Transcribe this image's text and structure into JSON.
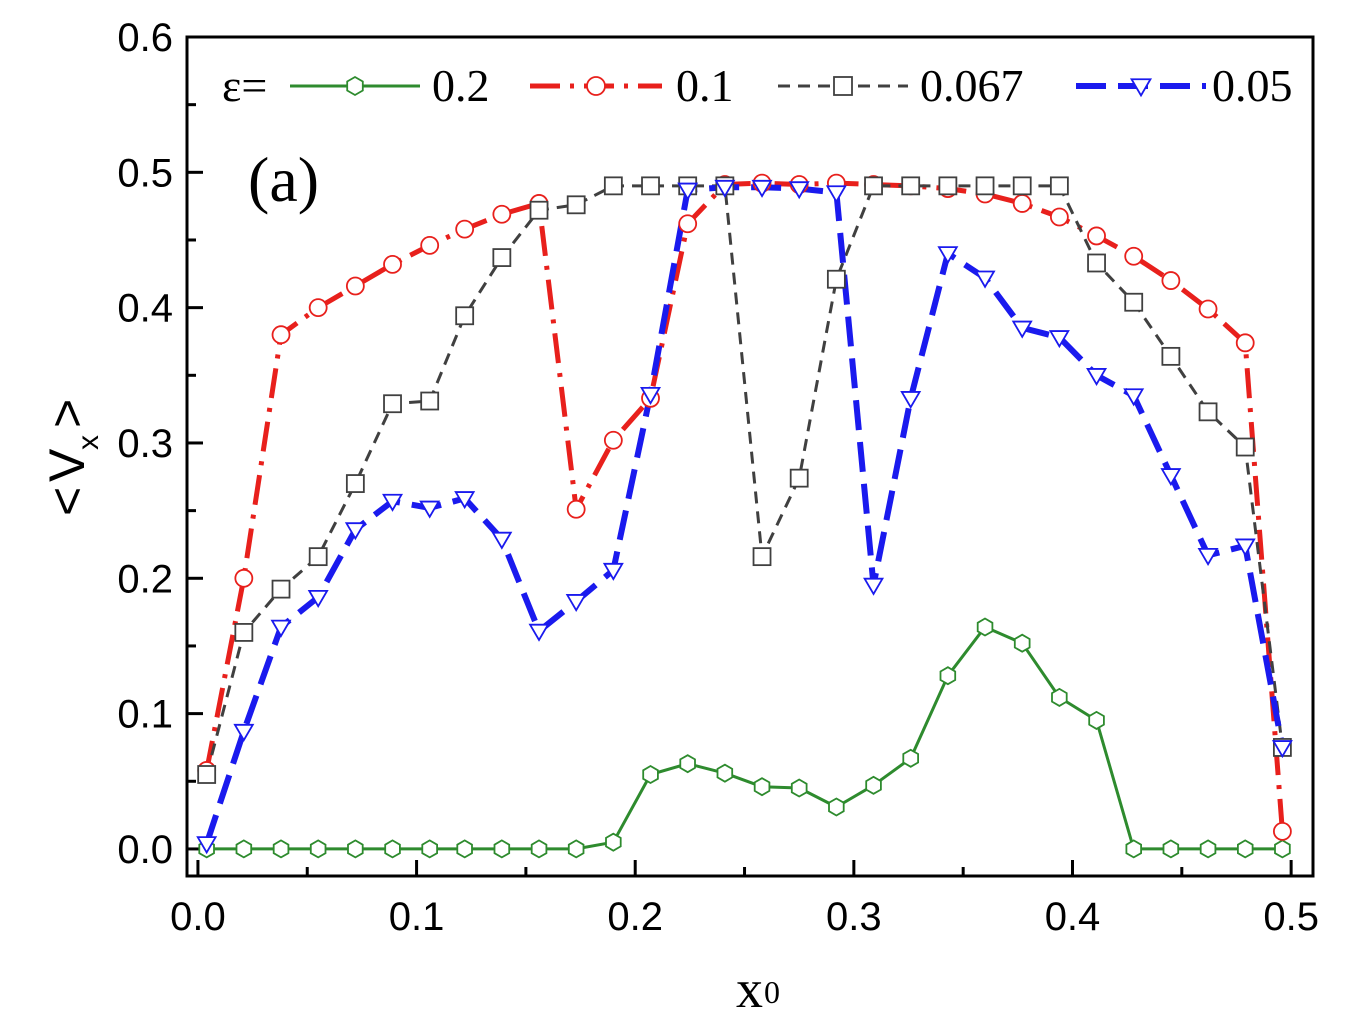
{
  "chart_data": {
    "type": "line",
    "panel_label": "(a)",
    "xlabel_main": "x",
    "xlabel_sub": "0",
    "ylabel_left": "<",
    "ylabel_main": "V",
    "ylabel_sub": "x",
    "ylabel_right": ">",
    "xlim": [
      -0.005,
      0.51
    ],
    "ylim": [
      -0.02,
      0.6
    ],
    "xticks": [
      0.0,
      0.1,
      0.2,
      0.3,
      0.4,
      0.5
    ],
    "xtick_labels": [
      "0.0",
      "0.1",
      "0.2",
      "0.3",
      "0.4",
      "0.5"
    ],
    "yticks": [
      0.0,
      0.1,
      0.2,
      0.3,
      0.4,
      0.5,
      0.6
    ],
    "ytick_labels": [
      "0.0",
      "0.1",
      "0.2",
      "0.3",
      "0.4",
      "0.5",
      "0.6"
    ],
    "legend_title": "ε=",
    "series": [
      {
        "name": "0.2",
        "color": "#2e8b2e",
        "dash": "solid",
        "marker": "hexagon",
        "x": [
          0.004,
          0.021,
          0.038,
          0.055,
          0.072,
          0.089,
          0.106,
          0.122,
          0.139,
          0.156,
          0.173,
          0.19,
          0.207,
          0.224,
          0.241,
          0.258,
          0.275,
          0.292,
          0.309,
          0.326,
          0.343,
          0.36,
          0.377,
          0.394,
          0.411,
          0.428,
          0.445,
          0.462,
          0.479,
          0.496
        ],
        "values": [
          0.0,
          0.0,
          0.0,
          0.0,
          0.0,
          0.0,
          0.0,
          0.0,
          0.0,
          0.0,
          0.0,
          0.005,
          0.055,
          0.063,
          0.056,
          0.046,
          0.045,
          0.031,
          0.047,
          0.067,
          0.128,
          0.164,
          0.152,
          0.112,
          0.095,
          0.0,
          0.0,
          0.0,
          0.0,
          0.0
        ]
      },
      {
        "name": "0.1",
        "color": "#e8201c",
        "dash": "dashdot",
        "marker": "circle",
        "x": [
          0.004,
          0.021,
          0.038,
          0.055,
          0.072,
          0.089,
          0.106,
          0.122,
          0.139,
          0.156,
          0.173,
          0.19,
          0.207,
          0.224,
          0.241,
          0.258,
          0.275,
          0.292,
          0.309,
          0.326,
          0.343,
          0.36,
          0.377,
          0.394,
          0.411,
          0.428,
          0.445,
          0.462,
          0.479,
          0.496
        ],
        "values": [
          0.058,
          0.2,
          0.38,
          0.4,
          0.416,
          0.432,
          0.446,
          0.458,
          0.469,
          0.477,
          0.251,
          0.302,
          0.333,
          0.462,
          0.491,
          0.492,
          0.491,
          0.492,
          0.491,
          0.49,
          0.488,
          0.484,
          0.477,
          0.467,
          0.453,
          0.438,
          0.42,
          0.399,
          0.374,
          0.013
        ]
      },
      {
        "name": "0.067",
        "color": "#404040",
        "dash": "dashed",
        "marker": "square",
        "x": [
          0.004,
          0.021,
          0.038,
          0.055,
          0.072,
          0.089,
          0.106,
          0.122,
          0.139,
          0.156,
          0.173,
          0.19,
          0.207,
          0.224,
          0.241,
          0.258,
          0.275,
          0.292,
          0.309,
          0.326,
          0.343,
          0.36,
          0.377,
          0.394,
          0.411,
          0.428,
          0.445,
          0.462,
          0.479,
          0.496
        ],
        "values": [
          0.055,
          0.16,
          0.192,
          0.216,
          0.27,
          0.329,
          0.331,
          0.394,
          0.437,
          0.472,
          0.476,
          0.49,
          0.49,
          0.49,
          0.49,
          0.216,
          0.274,
          0.421,
          0.49,
          0.49,
          0.49,
          0.49,
          0.49,
          0.49,
          0.433,
          0.404,
          0.364,
          0.323,
          0.297,
          0.075
        ]
      },
      {
        "name": "0.05",
        "color": "#1a1aee",
        "dash": "longdash",
        "marker": "triangle-down",
        "x": [
          0.004,
          0.021,
          0.038,
          0.055,
          0.072,
          0.089,
          0.106,
          0.122,
          0.139,
          0.156,
          0.173,
          0.19,
          0.207,
          0.224,
          0.241,
          0.258,
          0.275,
          0.292,
          0.309,
          0.326,
          0.343,
          0.36,
          0.377,
          0.394,
          0.411,
          0.428,
          0.445,
          0.462,
          0.479,
          0.496
        ],
        "values": [
          0.004,
          0.087,
          0.164,
          0.186,
          0.236,
          0.257,
          0.252,
          0.259,
          0.229,
          0.161,
          0.183,
          0.206,
          0.336,
          0.487,
          0.489,
          0.489,
          0.488,
          0.485,
          0.195,
          0.333,
          0.44,
          0.422,
          0.385,
          0.378,
          0.35,
          0.335,
          0.276,
          0.217,
          0.224,
          0.075
        ]
      }
    ]
  }
}
